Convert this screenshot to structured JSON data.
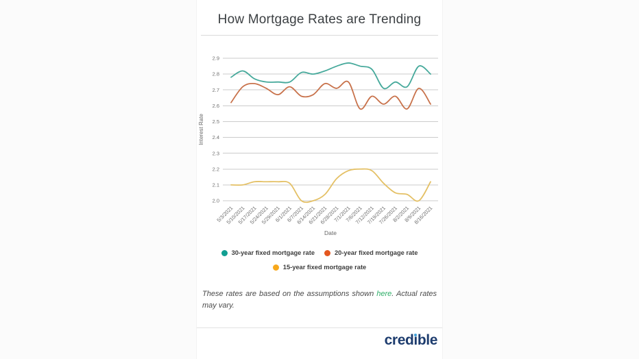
{
  "page": {
    "title": "How Mortgage Rates are Trending"
  },
  "chart_data": {
    "type": "line",
    "title": "How Mortgage Rates are Trending",
    "xlabel": "Date",
    "ylabel": "Interest Rate",
    "ylim": [
      2.0,
      2.9
    ],
    "ytick_step": 0.1,
    "grid": "horizontal-only",
    "gridline_color": "#cbcbcb",
    "tick_label_color": "#6f6f6f",
    "axis_title_color": "#666666",
    "legend_position": "bottom",
    "categories": [
      "5/3/2021",
      "5/10/2021",
      "5/17/2021",
      "5/24/2021",
      "5/29/2021",
      "6/1/2021",
      "6/7/2021",
      "6/14/2021",
      "6/21/2021",
      "6/28/2021",
      "7/1/2021",
      "7/6/2021",
      "7/12/2021",
      "7/19/2021",
      "7/26/2021",
      "8/2/2021",
      "8/9/2021",
      "8/16/2021"
    ],
    "series": [
      {
        "name": "30-year fixed mortgage rate",
        "line_color": "#46a99b",
        "legend_color": "#119f92",
        "values": [
          2.78,
          2.82,
          2.77,
          2.75,
          2.75,
          2.75,
          2.81,
          2.8,
          2.82,
          2.85,
          2.87,
          2.85,
          2.83,
          2.71,
          2.75,
          2.72,
          2.85,
          2.8
        ]
      },
      {
        "name": "20-year fixed mortgage rate",
        "line_color": "#c8724b",
        "legend_color": "#e4571e",
        "values": [
          2.62,
          2.72,
          2.74,
          2.71,
          2.67,
          2.72,
          2.66,
          2.67,
          2.74,
          2.71,
          2.75,
          2.58,
          2.66,
          2.61,
          2.66,
          2.58,
          2.71,
          2.61
        ]
      },
      {
        "name": "15-year fixed mortgage rate",
        "line_color": "#e4c065",
        "legend_color": "#f7a81b",
        "values": [
          2.1,
          2.1,
          2.12,
          2.12,
          2.12,
          2.11,
          2.0,
          2.0,
          2.04,
          2.14,
          2.19,
          2.2,
          2.19,
          2.11,
          2.05,
          2.04,
          2.0,
          2.12
        ]
      }
    ]
  },
  "footnote": {
    "text_before": "These rates are based on the assumptions shown ",
    "link_text": "here",
    "text_after": ". Actual rates may vary.",
    "link_color": "#2eae68"
  },
  "footer": {
    "logo_text": "credible",
    "logo_color": "#1d3c6e",
    "logo_dot_color": "#3e9fd8"
  }
}
